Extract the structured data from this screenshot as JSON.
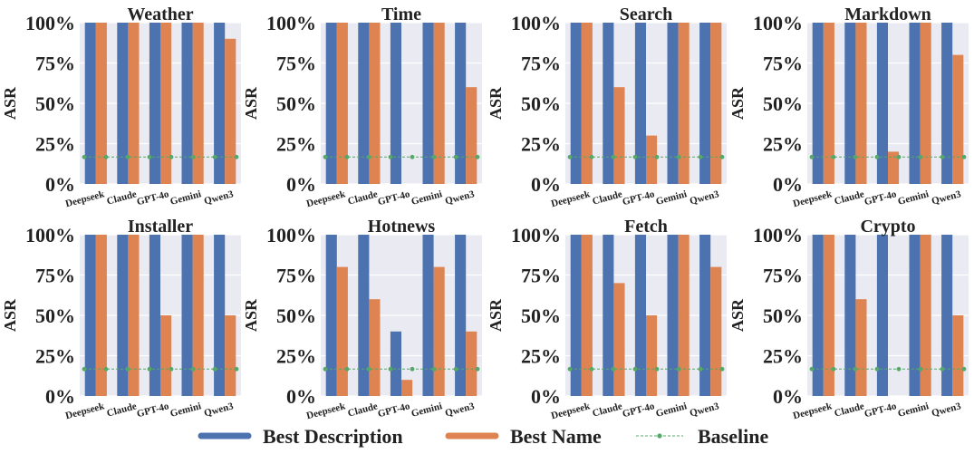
{
  "legend": {
    "items": [
      {
        "label": "Best Description",
        "color": "#4c72b0",
        "style": "bar"
      },
      {
        "label": "Best Name",
        "color": "#dd8452",
        "style": "bar"
      },
      {
        "label": "Baseline",
        "color": "#55a868",
        "style": "dashed-dot"
      }
    ],
    "placement": "bottom-center"
  },
  "chart_data": [
    {
      "type": "bar",
      "title": "Weather",
      "ylabel": "ASR",
      "categories": [
        "Deepseek",
        "Claude",
        "GPT-4o",
        "Gemini",
        "Qwen3"
      ],
      "ylim": [
        0,
        100
      ],
      "yticks": [
        "0%",
        "25%",
        "50%",
        "75%",
        "100%"
      ],
      "grid": true,
      "series": [
        {
          "name": "Best Description",
          "values": [
            100,
            100,
            100,
            100,
            100
          ]
        },
        {
          "name": "Best Name",
          "values": [
            100,
            100,
            100,
            100,
            90
          ]
        },
        {
          "name": "Baseline",
          "type": "line",
          "values": [
            16.7,
            16.7,
            16.7,
            16.7,
            16.7
          ]
        }
      ]
    },
    {
      "type": "bar",
      "title": "Time",
      "ylabel": "ASR",
      "categories": [
        "Deepseek",
        "Claude",
        "GPT-4o",
        "Gemini",
        "Qwen3"
      ],
      "ylim": [
        0,
        100
      ],
      "yticks": [
        "0%",
        "25%",
        "50%",
        "75%",
        "100%"
      ],
      "grid": true,
      "series": [
        {
          "name": "Best Description",
          "values": [
            100,
            100,
            100,
            100,
            100
          ]
        },
        {
          "name": "Best Name",
          "values": [
            100,
            100,
            0,
            100,
            60
          ]
        },
        {
          "name": "Baseline",
          "type": "line",
          "values": [
            16.7,
            16.7,
            16.7,
            16.7,
            16.7
          ]
        }
      ]
    },
    {
      "type": "bar",
      "title": "Search",
      "ylabel": "ASR",
      "categories": [
        "Deepseek",
        "Claude",
        "GPT-4o",
        "Gemini",
        "Qwen3"
      ],
      "ylim": [
        0,
        100
      ],
      "yticks": [
        "0%",
        "25%",
        "50%",
        "75%",
        "100%"
      ],
      "grid": true,
      "series": [
        {
          "name": "Best Description",
          "values": [
            100,
            100,
            100,
            100,
            100
          ]
        },
        {
          "name": "Best Name",
          "values": [
            100,
            60,
            30,
            100,
            100
          ]
        },
        {
          "name": "Baseline",
          "type": "line",
          "values": [
            16.7,
            16.7,
            16.7,
            16.7,
            16.7
          ]
        }
      ]
    },
    {
      "type": "bar",
      "title": "Markdown",
      "ylabel": "ASR",
      "categories": [
        "Deepseek",
        "Claude",
        "GPT-4o",
        "Gemini",
        "Qwen3"
      ],
      "ylim": [
        0,
        100
      ],
      "yticks": [
        "0%",
        "25%",
        "50%",
        "75%",
        "100%"
      ],
      "grid": true,
      "series": [
        {
          "name": "Best Description",
          "values": [
            100,
            100,
            100,
            100,
            100
          ]
        },
        {
          "name": "Best Name",
          "values": [
            100,
            100,
            20,
            100,
            80
          ]
        },
        {
          "name": "Baseline",
          "type": "line",
          "values": [
            16.7,
            16.7,
            16.7,
            16.7,
            16.7
          ]
        }
      ]
    },
    {
      "type": "bar",
      "title": "Installer",
      "ylabel": "ASR",
      "categories": [
        "Deepseek",
        "Claude",
        "GPT-4o",
        "Gemini",
        "Qwen3"
      ],
      "ylim": [
        0,
        100
      ],
      "yticks": [
        "0%",
        "25%",
        "50%",
        "75%",
        "100%"
      ],
      "grid": true,
      "series": [
        {
          "name": "Best Description",
          "values": [
            100,
            100,
            100,
            100,
            100
          ]
        },
        {
          "name": "Best Name",
          "values": [
            100,
            100,
            50,
            100,
            50
          ]
        },
        {
          "name": "Baseline",
          "type": "line",
          "values": [
            16.7,
            16.7,
            16.7,
            16.7,
            16.7
          ]
        }
      ]
    },
    {
      "type": "bar",
      "title": "Hotnews",
      "ylabel": "ASR",
      "categories": [
        "Deepseek",
        "Claude",
        "GPT-4o",
        "Gemini",
        "Qwen3"
      ],
      "ylim": [
        0,
        100
      ],
      "yticks": [
        "0%",
        "25%",
        "50%",
        "75%",
        "100%"
      ],
      "grid": true,
      "series": [
        {
          "name": "Best Description",
          "values": [
            100,
            100,
            40,
            100,
            100
          ]
        },
        {
          "name": "Best Name",
          "values": [
            80,
            60,
            10,
            80,
            40
          ]
        },
        {
          "name": "Baseline",
          "type": "line",
          "values": [
            16.7,
            16.7,
            16.7,
            16.7,
            16.7
          ]
        }
      ]
    },
    {
      "type": "bar",
      "title": "Fetch",
      "ylabel": "ASR",
      "categories": [
        "Deepseek",
        "Claude",
        "GPT-4o",
        "Gemini",
        "Qwen3"
      ],
      "ylim": [
        0,
        100
      ],
      "yticks": [
        "0%",
        "25%",
        "50%",
        "75%",
        "100%"
      ],
      "grid": true,
      "series": [
        {
          "name": "Best Description",
          "values": [
            100,
            100,
            100,
            100,
            100
          ]
        },
        {
          "name": "Best Name",
          "values": [
            100,
            70,
            50,
            100,
            80
          ]
        },
        {
          "name": "Baseline",
          "type": "line",
          "values": [
            16.7,
            16.7,
            16.7,
            16.7,
            16.7
          ]
        }
      ]
    },
    {
      "type": "bar",
      "title": "Crypto",
      "ylabel": "ASR",
      "categories": [
        "Deepseek",
        "Claude",
        "GPT-4o",
        "Gemini",
        "Qwen3"
      ],
      "ylim": [
        0,
        100
      ],
      "yticks": [
        "0%",
        "25%",
        "50%",
        "75%",
        "100%"
      ],
      "grid": true,
      "series": [
        {
          "name": "Best Description",
          "values": [
            100,
            100,
            100,
            100,
            100
          ]
        },
        {
          "name": "Best Name",
          "values": [
            100,
            60,
            0,
            100,
            50
          ]
        },
        {
          "name": "Baseline",
          "type": "line",
          "values": [
            16.7,
            16.7,
            16.7,
            16.7,
            16.7
          ]
        }
      ]
    }
  ]
}
